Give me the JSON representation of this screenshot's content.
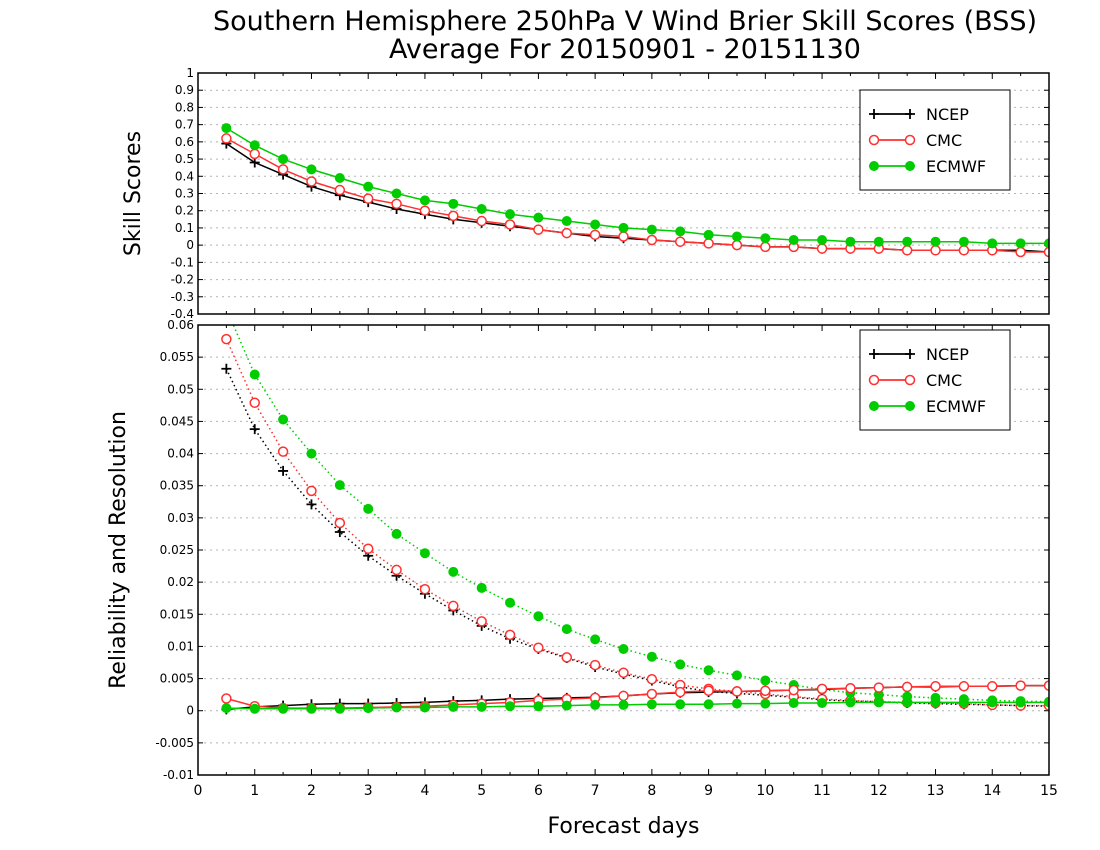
{
  "title_line1": "Southern Hemisphere 250hPa V Wind Brier Skill Scores (BSS)",
  "title_line2": "Average For 20150901 - 20151130",
  "colors": {
    "NCEP": "#000000",
    "CMC": "#ff3030",
    "ECMWF": "#00cc00",
    "grid": "#b4b4b4"
  },
  "chart_data": [
    {
      "type": "line",
      "ylabel": "Skill Scores",
      "xlabel": "",
      "xlim": [
        0,
        15
      ],
      "ylim": [
        -0.4,
        1
      ],
      "yticks": [
        "-0.4",
        "-0.3",
        "-0.2",
        "-0.1",
        "0",
        "0.1",
        "0.2",
        "0.3",
        "0.4",
        "0.5",
        "0.6",
        "0.7",
        "0.8",
        "0.9",
        "1"
      ],
      "grid": "dotted horizontal",
      "legend_position": "top-right",
      "legend": [
        "NCEP",
        "CMC",
        "ECMWF"
      ],
      "x": [
        0.5,
        1,
        1.5,
        2,
        2.5,
        3,
        3.5,
        4,
        4.5,
        5,
        5.5,
        6,
        6.5,
        7,
        7.5,
        8,
        8.5,
        9,
        9.5,
        10,
        10.5,
        11,
        11.5,
        12,
        12.5,
        13,
        13.5,
        14,
        14.5,
        15
      ],
      "series": [
        {
          "name": "NCEP",
          "marker": "plus",
          "line": "solid",
          "values": [
            0.59,
            0.48,
            0.41,
            0.34,
            0.29,
            0.25,
            0.21,
            0.18,
            0.15,
            0.13,
            0.11,
            0.09,
            0.07,
            0.05,
            0.04,
            0.03,
            0.02,
            0.01,
            0.0,
            -0.01,
            -0.01,
            -0.02,
            -0.02,
            -0.02,
            -0.03,
            -0.03,
            -0.03,
            -0.03,
            -0.03,
            -0.04
          ]
        },
        {
          "name": "CMC",
          "marker": "open-circle",
          "line": "solid",
          "values": [
            0.62,
            0.53,
            0.44,
            0.37,
            0.32,
            0.27,
            0.24,
            0.2,
            0.17,
            0.14,
            0.12,
            0.09,
            0.07,
            0.06,
            0.05,
            0.03,
            0.02,
            0.01,
            0.0,
            -0.01,
            -0.01,
            -0.02,
            -0.02,
            -0.02,
            -0.03,
            -0.03,
            -0.03,
            -0.03,
            -0.04,
            -0.04
          ]
        },
        {
          "name": "ECMWF",
          "marker": "filled-circle",
          "line": "solid",
          "values": [
            0.68,
            0.58,
            0.5,
            0.44,
            0.39,
            0.34,
            0.3,
            0.26,
            0.24,
            0.21,
            0.18,
            0.16,
            0.14,
            0.12,
            0.1,
            0.09,
            0.08,
            0.06,
            0.05,
            0.04,
            0.03,
            0.03,
            0.02,
            0.02,
            0.02,
            0.02,
            0.02,
            0.01,
            0.01,
            0.01
          ]
        }
      ]
    },
    {
      "type": "line",
      "ylabel": "Reliability and Resolution",
      "xlabel": "Forecast days",
      "xlim": [
        0,
        15
      ],
      "ylim": [
        -0.01,
        0.06
      ],
      "yticks": [
        "-0.01",
        "-0.005",
        "0",
        "0.005",
        "0.01",
        "0.015",
        "0.02",
        "0.025",
        "0.03",
        "0.035",
        "0.04",
        "0.045",
        "0.05",
        "0.055",
        "0.06"
      ],
      "xticks": [
        "0",
        "1",
        "2",
        "3",
        "4",
        "5",
        "6",
        "7",
        "8",
        "9",
        "10",
        "11",
        "12",
        "13",
        "14",
        "15"
      ],
      "grid": "dotted horizontal",
      "legend_position": "top-right",
      "legend": [
        "NCEP",
        "CMC",
        "ECMWF"
      ],
      "x": [
        0.5,
        1,
        1.5,
        2,
        2.5,
        3,
        3.5,
        4,
        4.5,
        5,
        5.5,
        6,
        6.5,
        7,
        7.5,
        8,
        8.5,
        9,
        9.5,
        10,
        10.5,
        11,
        11.5,
        12,
        12.5,
        13,
        13.5,
        14,
        14.5,
        15
      ],
      "series": [
        {
          "name": "NCEP",
          "component": "resolution",
          "marker": "plus",
          "line": "dotted",
          "values": [
            0.0532,
            0.0438,
            0.0373,
            0.0321,
            0.0278,
            0.0241,
            0.021,
            0.0182,
            0.0156,
            0.0132,
            0.0112,
            0.0096,
            0.0082,
            0.0068,
            0.0057,
            0.0047,
            0.0037,
            0.003,
            0.0027,
            0.0024,
            0.0021,
            0.0017,
            0.0015,
            0.0014,
            0.0012,
            0.0011,
            0.001,
            0.0009,
            0.0008,
            0.0007
          ]
        },
        {
          "name": "CMC",
          "component": "resolution",
          "marker": "open-circle",
          "line": "dotted",
          "values": [
            0.0578,
            0.0479,
            0.0403,
            0.0342,
            0.0292,
            0.0252,
            0.0219,
            0.0189,
            0.0163,
            0.0139,
            0.0118,
            0.0098,
            0.0083,
            0.0071,
            0.0059,
            0.0049,
            0.004,
            0.0034,
            0.003,
            0.0026,
            0.0022,
            0.0018,
            0.0016,
            0.0014,
            0.0013,
            0.0012,
            0.0011,
            0.0009,
            0.0008,
            0.0008
          ]
        },
        {
          "name": "ECMWF",
          "component": "resolution",
          "marker": "filled-circle",
          "line": "dotted",
          "values": [
            0.0625,
            0.0523,
            0.0453,
            0.04,
            0.0351,
            0.0314,
            0.0275,
            0.0245,
            0.0216,
            0.0191,
            0.0168,
            0.0147,
            0.0127,
            0.0111,
            0.0096,
            0.0084,
            0.0072,
            0.0063,
            0.0055,
            0.0047,
            0.004,
            0.0033,
            0.0028,
            0.0025,
            0.0022,
            0.002,
            0.0018,
            0.0016,
            0.0015,
            0.0014
          ]
        },
        {
          "name": "NCEP",
          "component": "reliability",
          "marker": "plus",
          "line": "solid",
          "values": [
            0.0002,
            0.0006,
            0.0008,
            0.001,
            0.0011,
            0.0011,
            0.0012,
            0.0013,
            0.0015,
            0.0016,
            0.0018,
            0.0019,
            0.002,
            0.0021,
            0.0023,
            0.0026,
            0.0028,
            0.0029,
            0.003,
            0.0031,
            0.0032,
            0.0033,
            0.0035,
            0.0036,
            0.0037,
            0.0037,
            0.0038,
            0.0038,
            0.0039,
            0.0039
          ]
        },
        {
          "name": "CMC",
          "component": "reliability",
          "marker": "open-circle",
          "line": "solid",
          "values": [
            0.0019,
            0.0007,
            0.0004,
            0.0004,
            0.0004,
            0.0005,
            0.0006,
            0.0007,
            0.0009,
            0.0011,
            0.0013,
            0.0016,
            0.0018,
            0.002,
            0.0023,
            0.0026,
            0.0029,
            0.0031,
            0.003,
            0.0031,
            0.0032,
            0.0034,
            0.0035,
            0.0036,
            0.0037,
            0.0038,
            0.0038,
            0.0038,
            0.0039,
            0.0039
          ]
        },
        {
          "name": "ECMWF",
          "component": "reliability",
          "marker": "filled-circle",
          "line": "solid",
          "values": [
            0.0004,
            0.0003,
            0.0003,
            0.0003,
            0.0003,
            0.0004,
            0.0005,
            0.0005,
            0.0006,
            0.0006,
            0.0007,
            0.0007,
            0.0008,
            0.0009,
            0.0009,
            0.001,
            0.001,
            0.001,
            0.0011,
            0.0011,
            0.0012,
            0.0012,
            0.0013,
            0.0013,
            0.0013,
            0.0013,
            0.0013,
            0.0013,
            0.0013,
            0.0013
          ]
        }
      ]
    }
  ]
}
